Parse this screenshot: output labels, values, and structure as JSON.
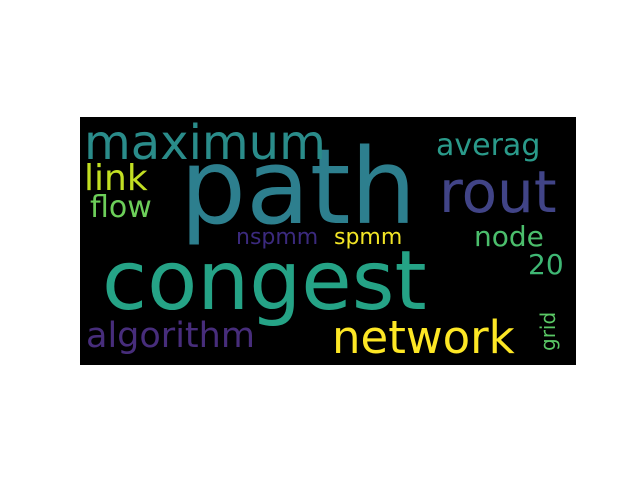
{
  "wordcloud": {
    "background": "#000000",
    "words": [
      {
        "text": "path",
        "color": "#2d7f8e"
      },
      {
        "text": "congest",
        "color": "#25a386"
      },
      {
        "text": "rout",
        "color": "#414487"
      },
      {
        "text": "maximum",
        "color": "#2a8c8a"
      },
      {
        "text": "network",
        "color": "#fde725"
      },
      {
        "text": "algorithm",
        "color": "#472d7b"
      },
      {
        "text": "link",
        "color": "#c2df23"
      },
      {
        "text": "flow",
        "color": "#6cce59"
      },
      {
        "text": "averag",
        "color": "#2a9a8a"
      },
      {
        "text": "node",
        "color": "#4bbe6c"
      },
      {
        "text": "nspmm",
        "color": "#3b2a7e"
      },
      {
        "text": "spmm",
        "color": "#f2e526"
      },
      {
        "text": "20",
        "color": "#3fb774"
      },
      {
        "text": "grid",
        "color": "#5ac865"
      }
    ]
  }
}
